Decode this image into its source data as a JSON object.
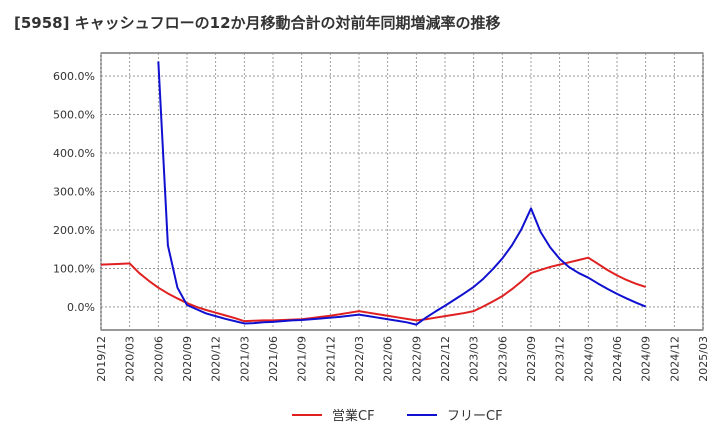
{
  "chart_data": {
    "type": "line",
    "title": "[5958]  キャッシュフローの12か月移動合計の対前年同期増減率の推移",
    "xlabel": "",
    "ylabel": "",
    "ylim": [
      -60,
      660
    ],
    "yticks": [
      0,
      100,
      200,
      300,
      400,
      500,
      600
    ],
    "ytick_labels": [
      "0.0%",
      "100.0%",
      "200.0%",
      "300.0%",
      "400.0%",
      "500.0%",
      "600.0%"
    ],
    "xticks": [
      "2019/12",
      "2020/03",
      "2020/06",
      "2020/09",
      "2020/12",
      "2021/03",
      "2021/06",
      "2021/09",
      "2021/12",
      "2022/03",
      "2022/06",
      "2022/09",
      "2022/12",
      "2023/03",
      "2023/06",
      "2023/09",
      "2023/12",
      "2024/03",
      "2024/06",
      "2024/09",
      "2024/12",
      "2025/03"
    ],
    "grid": true,
    "legend_position": "bottom",
    "series": [
      {
        "name": "営業CF",
        "color": "#e02020",
        "points": [
          [
            "2019/12",
            110
          ],
          [
            "2020/01",
            111
          ],
          [
            "2020/02",
            112
          ],
          [
            "2020/03",
            113
          ],
          [
            "2020/04",
            88
          ],
          [
            "2020/05",
            68
          ],
          [
            "2020/06",
            50
          ],
          [
            "2020/07",
            35
          ],
          [
            "2020/08",
            22
          ],
          [
            "2020/09",
            10
          ],
          [
            "2020/10",
            0
          ],
          [
            "2020/11",
            -8
          ],
          [
            "2020/12",
            -15
          ],
          [
            "2021/01",
            -22
          ],
          [
            "2021/02",
            -29
          ],
          [
            "2021/03",
            -37
          ],
          [
            "2021/04",
            -36
          ],
          [
            "2021/05",
            -35
          ],
          [
            "2021/06",
            -35
          ],
          [
            "2021/07",
            -34
          ],
          [
            "2021/08",
            -33
          ],
          [
            "2021/09",
            -32
          ],
          [
            "2021/10",
            -29
          ],
          [
            "2021/11",
            -26
          ],
          [
            "2021/12",
            -23
          ],
          [
            "2022/01",
            -19
          ],
          [
            "2022/02",
            -15
          ],
          [
            "2022/03",
            -11
          ],
          [
            "2022/04",
            -15
          ],
          [
            "2022/05",
            -19
          ],
          [
            "2022/06",
            -23
          ],
          [
            "2022/07",
            -27
          ],
          [
            "2022/08",
            -31
          ],
          [
            "2022/09",
            -35
          ],
          [
            "2022/10",
            -32
          ],
          [
            "2022/11",
            -28
          ],
          [
            "2022/12",
            -24
          ],
          [
            "2023/01",
            -20
          ],
          [
            "2023/02",
            -16
          ],
          [
            "2023/03",
            -11
          ],
          [
            "2023/04",
            1
          ],
          [
            "2023/05",
            14
          ],
          [
            "2023/06",
            28
          ],
          [
            "2023/07",
            46
          ],
          [
            "2023/08",
            66
          ],
          [
            "2023/09",
            88
          ],
          [
            "2023/10",
            96
          ],
          [
            "2023/11",
            104
          ],
          [
            "2023/12",
            110
          ],
          [
            "2024/01",
            116
          ],
          [
            "2024/02",
            122
          ],
          [
            "2024/03",
            128
          ],
          [
            "2024/04",
            112
          ],
          [
            "2024/05",
            96
          ],
          [
            "2024/06",
            82
          ],
          [
            "2024/07",
            70
          ],
          [
            "2024/08",
            60
          ],
          [
            "2024/09",
            52
          ]
        ]
      },
      {
        "name": "フリーCF",
        "color": "#1010d0",
        "points": [
          [
            "2020/06",
            638
          ],
          [
            "2020/07",
            160
          ],
          [
            "2020/08",
            50
          ],
          [
            "2020/09",
            5
          ],
          [
            "2020/10",
            -6
          ],
          [
            "2020/11",
            -17
          ],
          [
            "2020/12",
            -24
          ],
          [
            "2021/01",
            -31
          ],
          [
            "2021/02",
            -37
          ],
          [
            "2021/03",
            -43
          ],
          [
            "2021/04",
            -42
          ],
          [
            "2021/05",
            -40
          ],
          [
            "2021/06",
            -39
          ],
          [
            "2021/07",
            -37
          ],
          [
            "2021/08",
            -35
          ],
          [
            "2021/09",
            -34
          ],
          [
            "2021/10",
            -32
          ],
          [
            "2021/11",
            -30
          ],
          [
            "2021/12",
            -28
          ],
          [
            "2022/01",
            -26
          ],
          [
            "2022/02",
            -23
          ],
          [
            "2022/03",
            -20
          ],
          [
            "2022/04",
            -24
          ],
          [
            "2022/05",
            -28
          ],
          [
            "2022/06",
            -32
          ],
          [
            "2022/07",
            -36
          ],
          [
            "2022/08",
            -40
          ],
          [
            "2022/09",
            -46
          ],
          [
            "2022/10",
            -28
          ],
          [
            "2022/11",
            -12
          ],
          [
            "2022/12",
            3
          ],
          [
            "2023/01",
            19
          ],
          [
            "2023/02",
            35
          ],
          [
            "2023/03",
            52
          ],
          [
            "2023/04",
            73
          ],
          [
            "2023/05",
            98
          ],
          [
            "2023/06",
            126
          ],
          [
            "2023/07",
            160
          ],
          [
            "2023/08",
            202
          ],
          [
            "2023/09",
            256
          ],
          [
            "2023/10",
            195
          ],
          [
            "2023/11",
            155
          ],
          [
            "2023/12",
            125
          ],
          [
            "2024/01",
            103
          ],
          [
            "2024/02",
            88
          ],
          [
            "2024/03",
            76
          ],
          [
            "2024/04",
            61
          ],
          [
            "2024/05",
            47
          ],
          [
            "2024/06",
            34
          ],
          [
            "2024/07",
            22
          ],
          [
            "2024/08",
            11
          ],
          [
            "2024/09",
            1
          ]
        ]
      }
    ]
  }
}
